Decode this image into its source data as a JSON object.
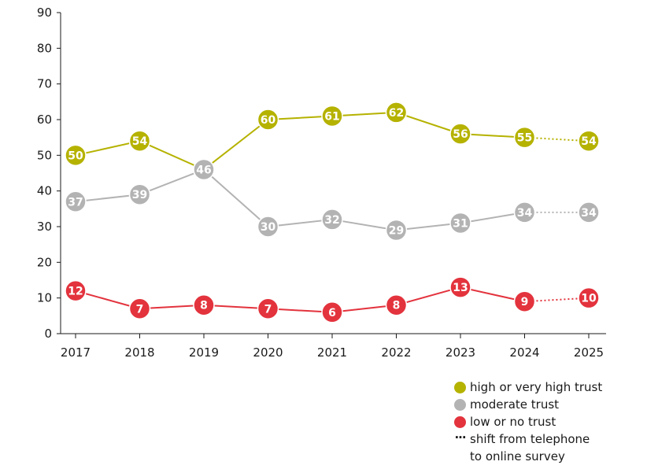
{
  "chart_data": {
    "type": "line",
    "x": [
      "2017",
      "2018",
      "2019",
      "2020",
      "2021",
      "2022",
      "2023",
      "2024",
      "2025"
    ],
    "ylim": [
      0,
      90
    ],
    "yticks": [
      "0",
      "10",
      "20",
      "30",
      "40",
      "50",
      "60",
      "70",
      "80",
      "90"
    ],
    "grid": false,
    "legend_position": "bottom-right",
    "series": [
      {
        "name": "high or very high trust",
        "color": "#b5b200",
        "values": [
          50,
          54,
          46,
          60,
          61,
          62,
          56,
          55,
          54
        ]
      },
      {
        "name": "moderate trust",
        "color": "#b3b3b3",
        "values": [
          37,
          39,
          46,
          30,
          32,
          29,
          31,
          34,
          34
        ]
      },
      {
        "name": "low or no trust",
        "color": "#e3333d",
        "values": [
          12,
          7,
          8,
          7,
          6,
          8,
          13,
          9,
          10
        ]
      }
    ],
    "annotations": {
      "dotted_segment": "2024-2025",
      "dotted_legend": "shift from telephone\nto online survey"
    }
  }
}
